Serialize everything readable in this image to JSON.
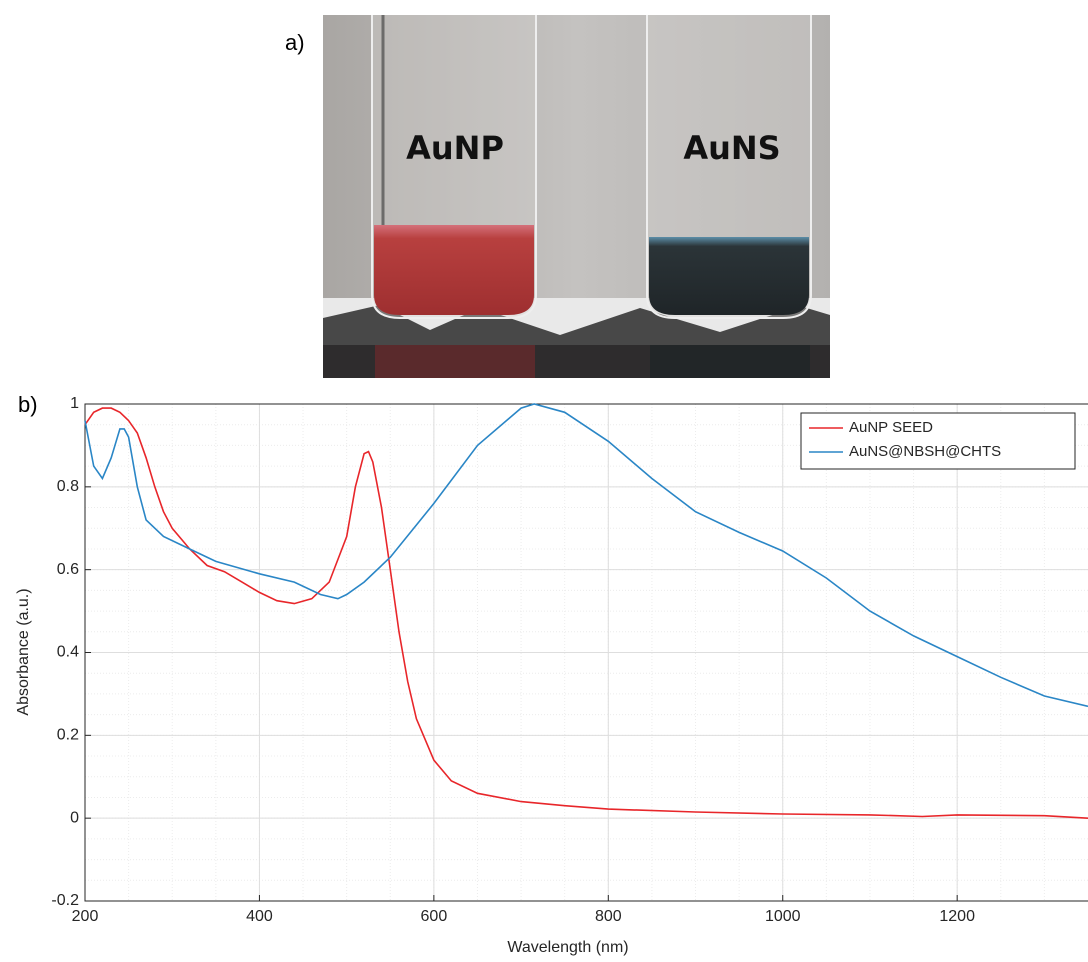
{
  "photo": {
    "panel_label": "a)",
    "labels": [
      "AuNP",
      "AuNS"
    ]
  },
  "chart_data": {
    "type": "line",
    "panel_label": "b)",
    "xlabel": "Wavelength (nm)",
    "ylabel": "Absorbance (a.u.)",
    "xlim": [
      200,
      1350
    ],
    "ylim": [
      -0.2,
      1
    ],
    "xticks": [
      200,
      400,
      600,
      800,
      1000,
      1200
    ],
    "yticks": [
      -0.2,
      0,
      0.2,
      0.4,
      0.6,
      0.8,
      1
    ],
    "grid": true,
    "minor_grid": true,
    "legend": "top-right",
    "series": [
      {
        "name": "AuNP SEED",
        "color": "#e8262a",
        "x": [
          200,
          210,
          220,
          230,
          240,
          250,
          260,
          270,
          280,
          290,
          300,
          320,
          340,
          360,
          380,
          400,
          420,
          440,
          460,
          480,
          500,
          510,
          520,
          525,
          530,
          540,
          550,
          560,
          570,
          580,
          600,
          620,
          650,
          700,
          750,
          800,
          900,
          1000,
          1100,
          1160,
          1200,
          1300,
          1350
        ],
        "values": [
          0.95,
          0.98,
          0.99,
          0.99,
          0.98,
          0.96,
          0.93,
          0.87,
          0.8,
          0.74,
          0.7,
          0.65,
          0.61,
          0.595,
          0.57,
          0.545,
          0.525,
          0.518,
          0.53,
          0.57,
          0.68,
          0.8,
          0.88,
          0.885,
          0.86,
          0.75,
          0.6,
          0.45,
          0.33,
          0.24,
          0.14,
          0.09,
          0.06,
          0.04,
          0.03,
          0.022,
          0.015,
          0.01,
          0.008,
          0.004,
          0.008,
          0.006,
          0.0
        ]
      },
      {
        "name": "AuNS@NBSH@CHTS",
        "color": "#2a86c6",
        "x": [
          200,
          210,
          220,
          230,
          240,
          245,
          250,
          260,
          270,
          290,
          320,
          350,
          400,
          440,
          470,
          490,
          500,
          520,
          550,
          600,
          650,
          700,
          715,
          750,
          800,
          850,
          900,
          950,
          1000,
          1050,
          1100,
          1150,
          1200,
          1250,
          1300,
          1350
        ],
        "values": [
          0.96,
          0.85,
          0.82,
          0.87,
          0.94,
          0.94,
          0.92,
          0.8,
          0.72,
          0.68,
          0.65,
          0.62,
          0.59,
          0.57,
          0.54,
          0.53,
          0.54,
          0.57,
          0.63,
          0.76,
          0.9,
          0.99,
          1.0,
          0.98,
          0.91,
          0.82,
          0.74,
          0.69,
          0.645,
          0.58,
          0.5,
          0.44,
          0.39,
          0.34,
          0.295,
          0.27
        ]
      }
    ]
  }
}
